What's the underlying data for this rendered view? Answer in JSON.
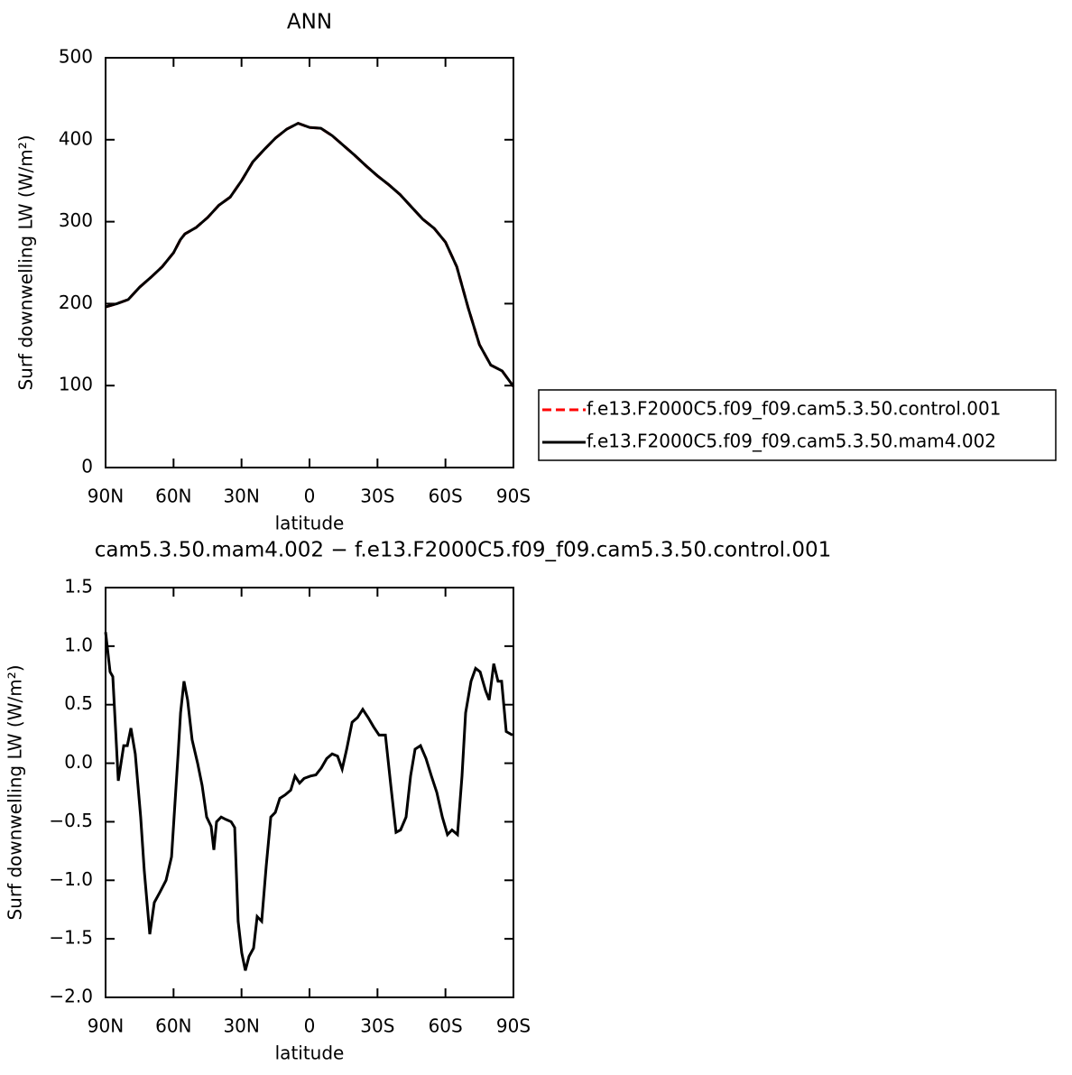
{
  "chart_data": [
    {
      "type": "line",
      "title": "ANN",
      "xlabel": "latitude",
      "ylabel": "Surf downwelling LW (W/m²)",
      "x": [
        90,
        85,
        80,
        75,
        70,
        65,
        60,
        57,
        55,
        50,
        45,
        40,
        35,
        30,
        25,
        20,
        15,
        10,
        5,
        0,
        -5,
        -10,
        -15,
        -20,
        -25,
        -30,
        -35,
        -40,
        -45,
        -50,
        -55,
        -60,
        -65,
        -70,
        -75,
        -80,
        -85,
        -90
      ],
      "xlim": [
        90,
        -90
      ],
      "xticks": [
        {
          "value": 90,
          "label": "90N"
        },
        {
          "value": 60,
          "label": "60N"
        },
        {
          "value": 30,
          "label": "30N"
        },
        0,
        {
          "value": -30,
          "label": "30S"
        },
        {
          "value": -60,
          "label": "60S"
        },
        {
          "value": -90,
          "label": "90S"
        }
      ],
      "ylim": [
        0,
        500
      ],
      "yticks": [
        0,
        100,
        200,
        300,
        400,
        500
      ],
      "legend": "right",
      "series": [
        {
          "name": "f.e13.F2000C5.f09_f09.cam5.3.50.control.001",
          "color": "#ff0000",
          "linestyle": "dashed",
          "values": [
            196,
            200,
            205,
            220,
            232,
            245,
            262,
            278,
            285,
            293,
            305,
            320,
            330,
            350,
            373,
            388,
            402,
            413,
            420,
            415,
            414,
            405,
            393,
            381,
            368,
            356,
            345,
            333,
            318,
            303,
            292,
            275,
            245,
            195,
            150,
            125,
            118,
            99
          ]
        },
        {
          "name": "f.e13.F2000C5.f09_f09.cam5.3.50.mam4.002",
          "color": "#000000",
          "linestyle": "solid",
          "values": [
            196,
            200,
            205,
            220,
            232,
            245,
            262,
            278,
            285,
            293,
            305,
            320,
            330,
            350,
            373,
            388,
            402,
            413,
            420,
            415,
            414,
            405,
            393,
            381,
            368,
            356,
            345,
            333,
            318,
            303,
            292,
            275,
            245,
            195,
            150,
            125,
            118,
            99
          ]
        }
      ]
    },
    {
      "type": "line",
      "title": "cam5.3.50.mam4.002 − f.e13.F2000C5.f09_f09.cam5.3.50.control.001",
      "xlabel": "latitude",
      "ylabel": "Surf downwelling LW (W/m²)",
      "x": [
        90,
        88,
        86.8,
        84.4,
        82,
        80.4,
        78.8,
        76.9,
        74.5,
        72.9,
        70.5,
        68.5,
        66,
        63.3,
        60.9,
        58,
        56.9,
        55.4,
        53.8,
        51.8,
        49.4,
        47.4,
        45.4,
        43.4,
        42.2,
        41,
        39,
        37,
        34.6,
        33,
        31.5,
        29.9,
        28.3,
        26.7,
        24.7,
        23.1,
        21.1,
        19.1,
        17.1,
        15.1,
        13.1,
        10.7,
        8.3,
        6.4,
        4.4,
        2.4,
        -0.4,
        -2.8,
        -5.2,
        -7.6,
        -10,
        -12.4,
        -14.4,
        -16.4,
        -18.8,
        -21.2,
        -23.5,
        -25.9,
        -28.3,
        -30.7,
        -33.5,
        -35.9,
        -38.2,
        -40.2,
        -42.6,
        -44.6,
        -46.6,
        -49,
        -51.4,
        -53.8,
        -56.2,
        -58.6,
        -60.9,
        -62.9,
        -65.3,
        -67.3,
        -68.9,
        -71.3,
        -73.3,
        -75.3,
        -77.7,
        -79.3,
        -81.3,
        -83.2,
        -84.8,
        -86.8,
        -89.6
      ],
      "values": [
        1.12,
        0.78,
        0.74,
        -0.15,
        0.15,
        0.15,
        0.3,
        0.08,
        -0.46,
        -0.92,
        -1.46,
        -1.19,
        -1.1,
        -1.0,
        -0.8,
        0.08,
        0.43,
        0.7,
        0.54,
        0.2,
        0.0,
        -0.19,
        -0.46,
        -0.54,
        -0.74,
        -0.5,
        -0.46,
        -0.48,
        -0.5,
        -0.55,
        -1.35,
        -1.62,
        -1.77,
        -1.65,
        -1.58,
        -1.31,
        -1.35,
        -0.88,
        -0.46,
        -0.42,
        -0.3,
        -0.27,
        -0.23,
        -0.11,
        -0.17,
        -0.13,
        -0.11,
        -0.1,
        -0.04,
        0.04,
        0.08,
        0.06,
        -0.05,
        0.12,
        0.35,
        0.39,
        0.46,
        0.39,
        0.31,
        0.24,
        0.24,
        -0.19,
        -0.59,
        -0.57,
        -0.46,
        -0.11,
        0.12,
        0.15,
        0.04,
        -0.11,
        -0.25,
        -0.46,
        -0.61,
        -0.57,
        -0.61,
        -0.11,
        0.43,
        0.7,
        0.81,
        0.78,
        0.62,
        0.54,
        0.85,
        0.7,
        0.7,
        0.27,
        0.24
      ],
      "color": "#000000",
      "xlim": [
        90,
        -90
      ],
      "xticks": [
        {
          "value": 90,
          "label": "90N"
        },
        {
          "value": 60,
          "label": "60N"
        },
        {
          "value": 30,
          "label": "30N"
        },
        0,
        {
          "value": -30,
          "label": "30S"
        },
        {
          "value": -60,
          "label": "60S"
        },
        {
          "value": -90,
          "label": "90S"
        }
      ],
      "ylim": [
        -2,
        1.5
      ],
      "yticks": [
        {
          "value": -2,
          "label": "−2.0"
        },
        {
          "value": -1.5,
          "label": "−1.5"
        },
        {
          "value": -1,
          "label": "−1.0"
        },
        {
          "value": -0.5,
          "label": "−0.5"
        },
        {
          "value": 0,
          "label": "0.0"
        },
        0.5,
        {
          "value": 1,
          "label": "1.0"
        },
        1.5
      ]
    }
  ]
}
